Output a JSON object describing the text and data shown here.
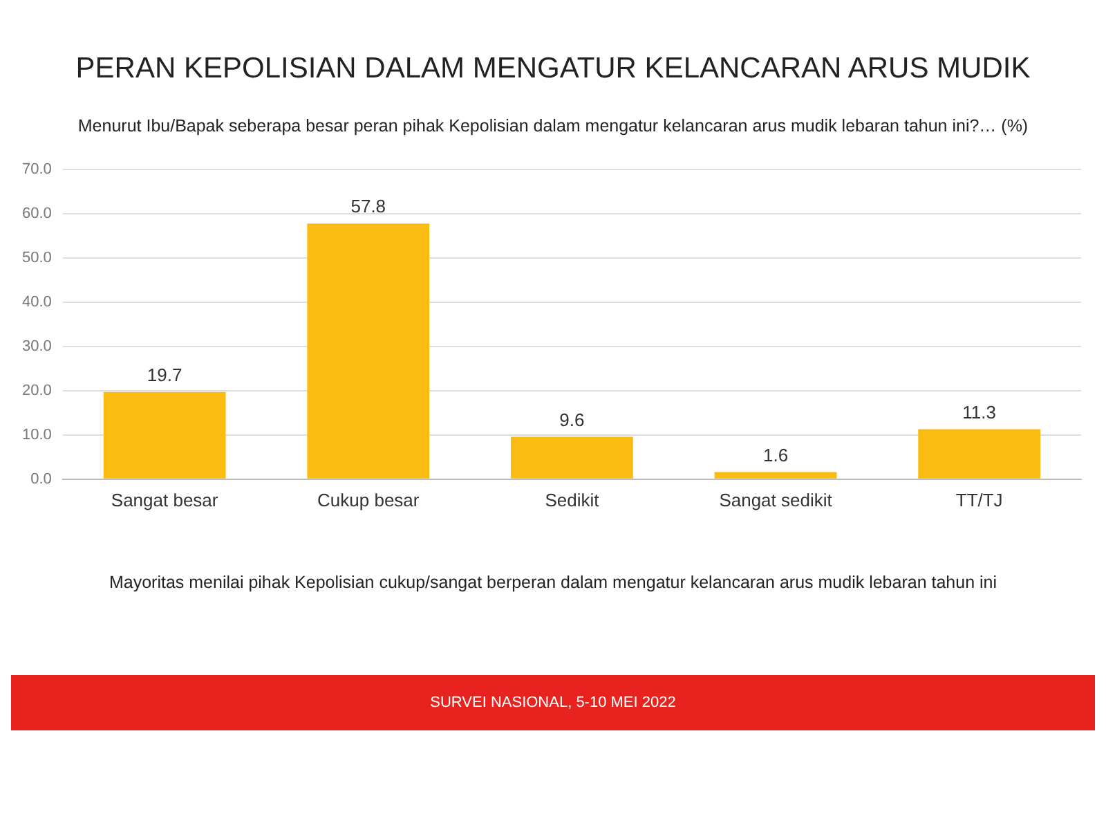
{
  "chart_data": {
    "type": "bar",
    "title": "PERAN KEPOLISIAN DALAM MENGATUR KELANCARAN ARUS MUDIK",
    "subtitle": "Menurut Ibu/Bapak seberapa besar peran pihak Kepolisian dalam mengatur kelancaran arus mudik lebaran tahun ini?… (%)",
    "categories": [
      "Sangat besar",
      "Cukup besar",
      "Sedikit",
      "Sangat sedikit",
      "TT/TJ"
    ],
    "values": [
      19.7,
      57.8,
      9.6,
      1.6,
      11.3
    ],
    "color": "#fbbc12",
    "ylim": [
      0,
      70
    ],
    "yticks": [
      {
        "value": 0,
        "label": "0.0"
      },
      {
        "value": 10,
        "label": "10.0"
      },
      {
        "value": 20,
        "label": "20.0"
      },
      {
        "value": 30,
        "label": "30.0"
      },
      {
        "value": 40,
        "label": "40.0"
      },
      {
        "value": 50,
        "label": "50.0"
      },
      {
        "value": 60,
        "label": "60.0"
      },
      {
        "value": 70,
        "label": "70.0"
      }
    ],
    "grid": "y",
    "legend": false,
    "data_labels": true,
    "annotations": [
      "Mayoritas menilai pihak Kepolisian cukup/sangat berperan dalam mengatur kelancaran arus mudik lebaran tahun ini",
      "SURVEI NASIONAL, 5-10 MEI 2022"
    ]
  }
}
